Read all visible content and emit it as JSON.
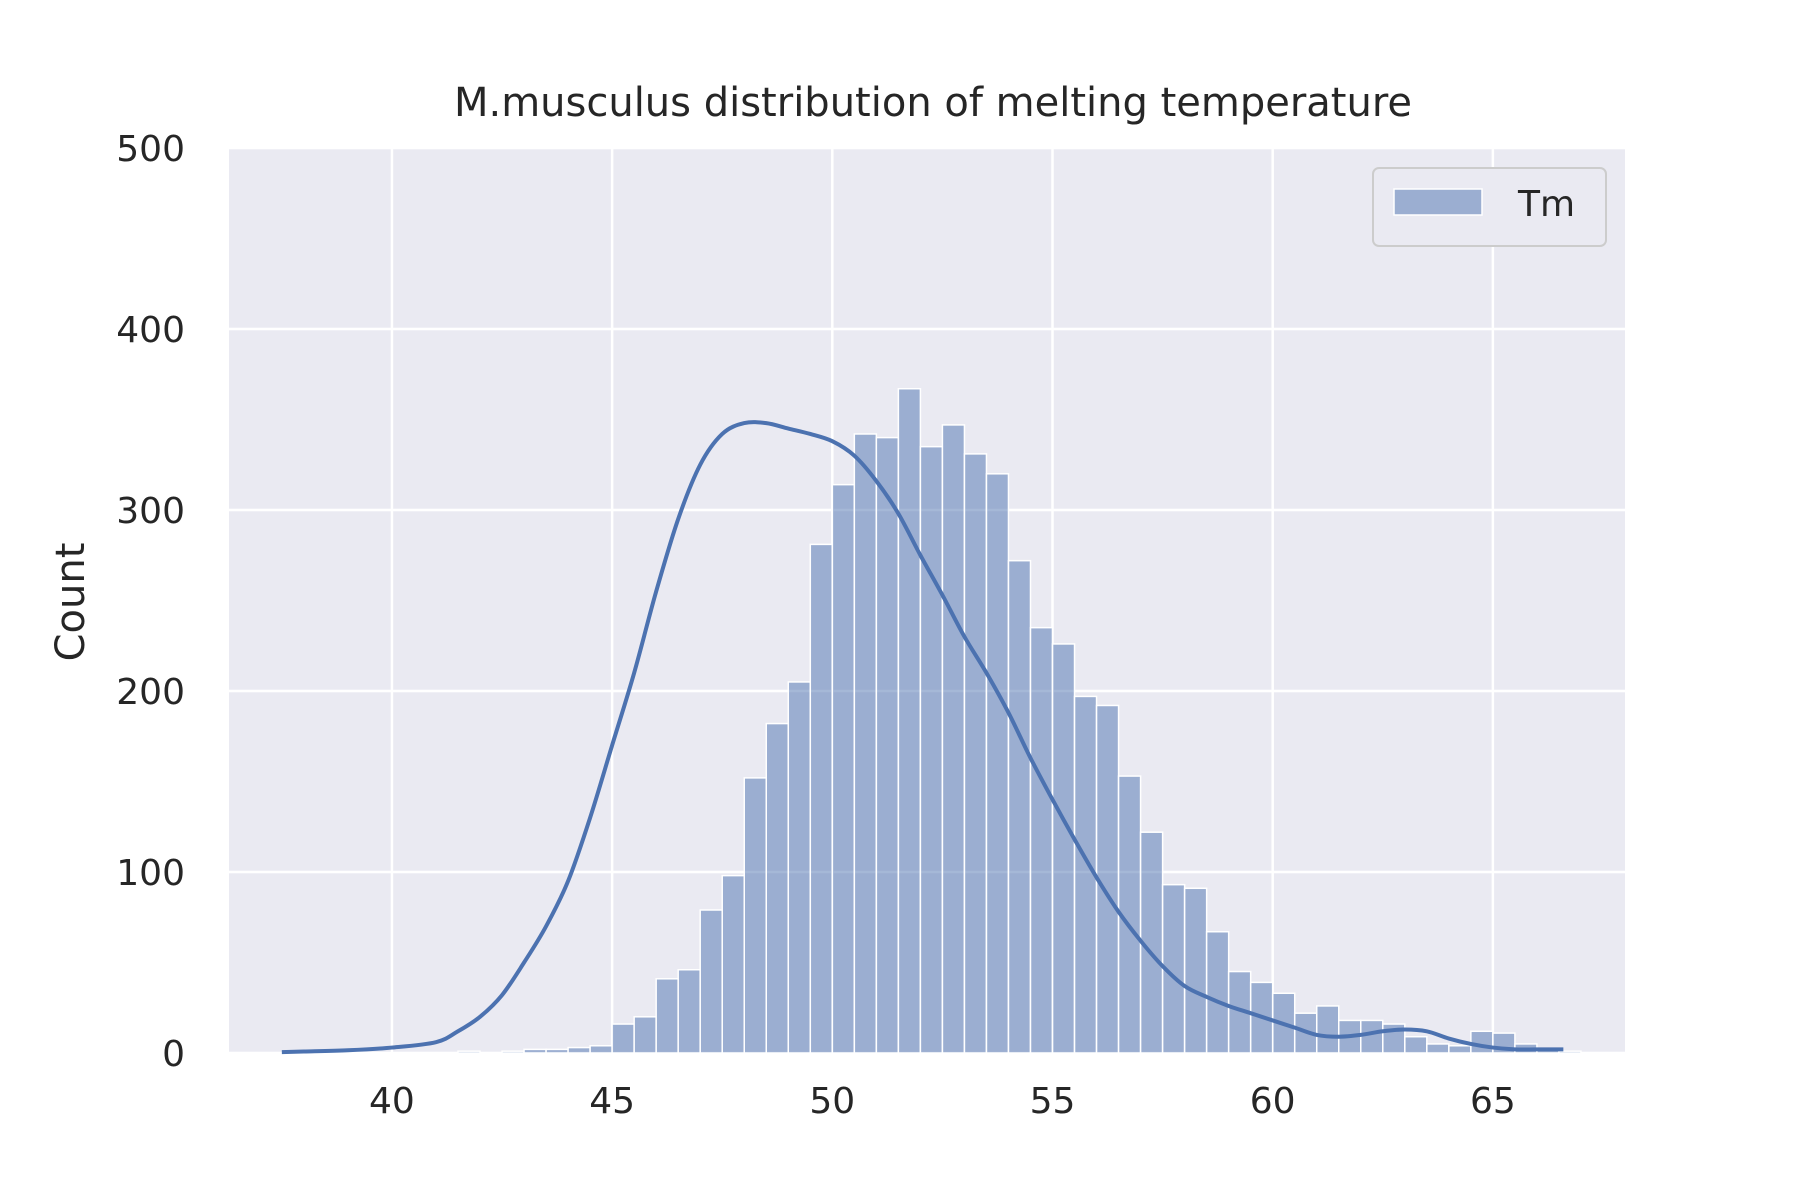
{
  "chart_data": {
    "type": "bar",
    "subtype": "histogram-with-kde",
    "title": "M.musculus distribution of melting temperature",
    "xlabel": "",
    "ylabel": "Count",
    "xlim": [
      36.3,
      68.0
    ],
    "ylim": [
      0,
      500
    ],
    "xticks": [
      40,
      45,
      50,
      55,
      60,
      65
    ],
    "yticks": [
      0,
      100,
      200,
      300,
      400,
      500
    ],
    "grid": true,
    "legend_position": "top-right",
    "colors": {
      "background": "#eaeaf2",
      "grid": "#ffffff",
      "bar": "#4c72b0",
      "line": "#4c72b0"
    },
    "series": [
      {
        "name": "Tm",
        "bin_start": 37.5,
        "bin_width": 0.5,
        "values": [
          0,
          0,
          0,
          0,
          0,
          0,
          0,
          0,
          1,
          0,
          1,
          2,
          2,
          3,
          4,
          16,
          20,
          41,
          46,
          79,
          98,
          152,
          182,
          205,
          281,
          314,
          342,
          340,
          367,
          335,
          347,
          331,
          320,
          272,
          235,
          226,
          197,
          192,
          153,
          122,
          93,
          91,
          67,
          45,
          39,
          33,
          22,
          26,
          18,
          18,
          16,
          9,
          5,
          4,
          12,
          11,
          5,
          2,
          1
        ]
      }
    ],
    "kde": {
      "x": [
        37.5,
        38,
        39,
        40,
        41,
        41.5,
        42,
        42.5,
        43,
        43.5,
        44,
        44.5,
        45,
        45.5,
        46,
        46.5,
        47,
        47.5,
        48,
        48.5,
        49,
        49.5,
        50,
        50.5,
        51,
        51.5,
        52,
        52.5,
        53,
        53.5,
        54,
        54.5,
        55,
        55.5,
        56,
        56.5,
        57,
        57.5,
        58,
        58.5,
        59,
        59.5,
        60,
        60.5,
        61,
        61.5,
        62,
        62.5,
        63,
        63.5,
        64,
        64.5,
        65,
        65.5,
        66,
        66.6
      ],
      "y": [
        0.5,
        0.8,
        1.5,
        3,
        6,
        12,
        20,
        32,
        50,
        70,
        95,
        130,
        170,
        210,
        255,
        295,
        325,
        342,
        348,
        348,
        345,
        342,
        338,
        330,
        316,
        298,
        275,
        253,
        230,
        210,
        188,
        163,
        140,
        118,
        97,
        78,
        62,
        48,
        37,
        31,
        26,
        22,
        18,
        14,
        10,
        9,
        10,
        12,
        13,
        12,
        8,
        5,
        3,
        2,
        2,
        2
      ]
    }
  }
}
